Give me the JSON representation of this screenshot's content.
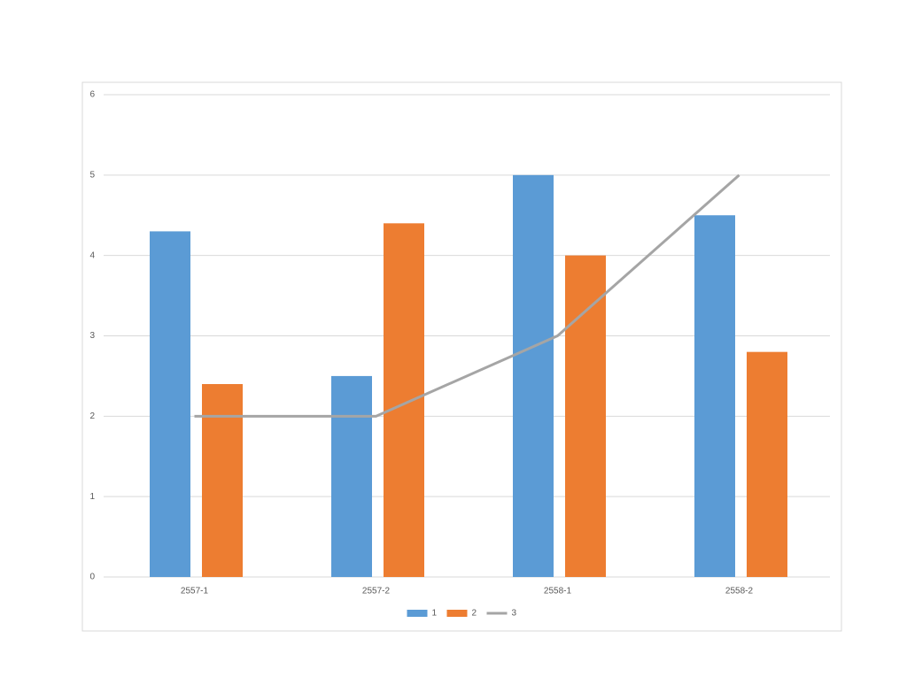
{
  "chart_data": {
    "type": "combo",
    "categories": [
      "2557-1",
      "2557-2",
      "2558-1",
      "2558-2"
    ],
    "series": [
      {
        "name": "1",
        "type": "bar",
        "color": "#5b9bd5",
        "values": [
          4.3,
          2.5,
          5,
          4.5
        ]
      },
      {
        "name": "2",
        "type": "bar",
        "color": "#ed7d31",
        "values": [
          2.4,
          4.4,
          4,
          2.8
        ]
      },
      {
        "name": "3",
        "type": "line",
        "color": "#a5a5a5",
        "values": [
          2,
          2,
          3,
          5
        ]
      }
    ],
    "ylim": [
      0,
      6
    ],
    "yticks": [
      0,
      1,
      2,
      3,
      4,
      5,
      6
    ],
    "grid": true,
    "legend": "bottom"
  }
}
